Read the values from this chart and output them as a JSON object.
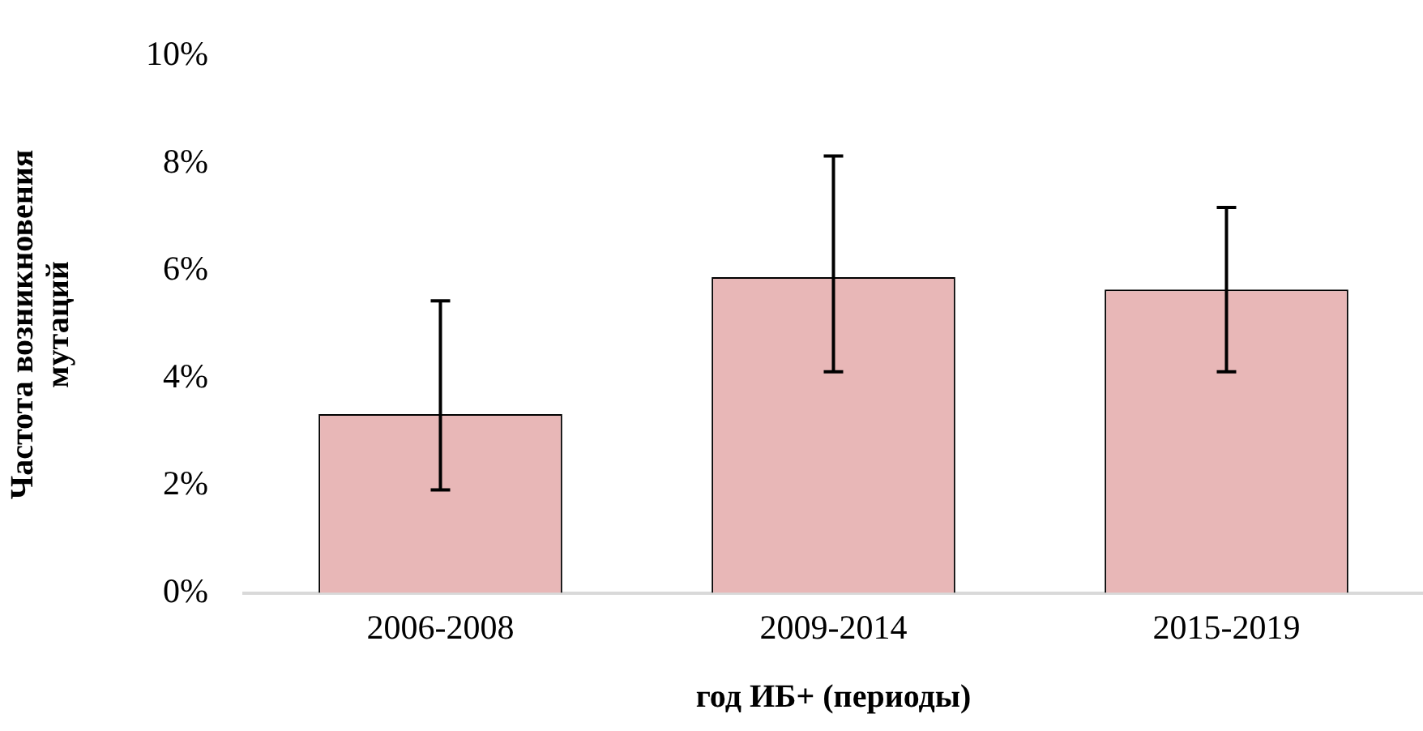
{
  "chart_data": {
    "type": "bar",
    "xlabel": "год ИБ+ (периоды)",
    "ylabel": "Частота возникновения\nмутаций",
    "categories": [
      "2006-2008",
      "2009-2014",
      "2015-2019"
    ],
    "values": [
      3.33,
      5.88,
      5.65
    ],
    "errors": [
      [
        1.92,
        5.44
      ],
      [
        4.12,
        8.14
      ],
      [
        4.12,
        7.18
      ]
    ],
    "color": "#e8b7b7",
    "ylim": [
      0,
      10
    ],
    "yticks": [
      {
        "value": 0,
        "label": "0%"
      },
      {
        "value": 2,
        "label": "2%"
      },
      {
        "value": 4,
        "label": "4%"
      },
      {
        "value": 6,
        "label": "6%"
      },
      {
        "value": 8,
        "label": "8%"
      },
      {
        "value": 10,
        "label": "10%"
      }
    ],
    "grid": false,
    "legend": false
  }
}
